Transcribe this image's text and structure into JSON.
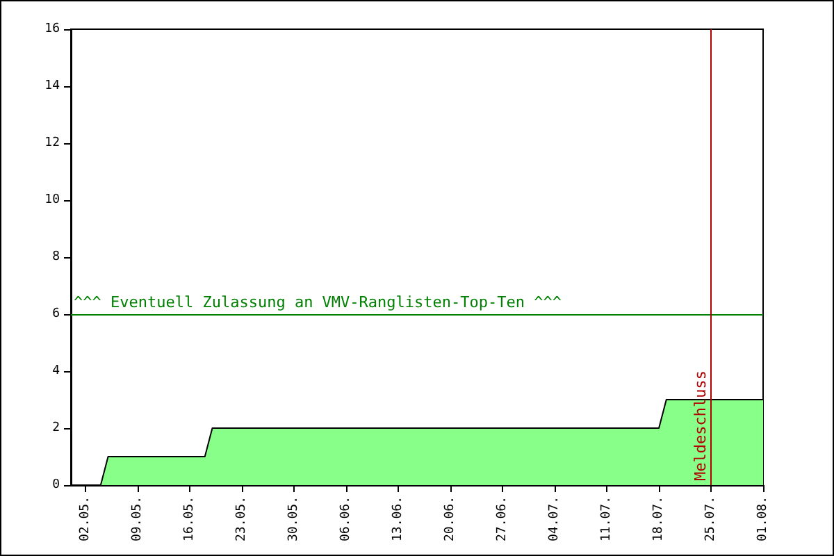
{
  "chart_data": {
    "type": "area",
    "x": [
      "--05-04",
      "--05-05",
      "--05-18",
      "--05-19",
      "--07-18",
      "--07-19",
      "--08-01"
    ],
    "series": [
      {
        "color": "#88ff88",
        "values": [
          0,
          1,
          1,
          2,
          2,
          3,
          3
        ]
      }
    ],
    "xlim": [
      "--04-30",
      "--08-01"
    ],
    "xticks": [
      {
        "value": "--05-02",
        "label": "02.05."
      },
      {
        "value": "--05-09",
        "label": "09.05."
      },
      {
        "value": "--05-16",
        "label": "16.05."
      },
      {
        "value": "--05-23",
        "label": "23.05."
      },
      {
        "value": "--05-30",
        "label": "30.05."
      },
      {
        "value": "--06-06",
        "label": "06.06."
      },
      {
        "value": "--06-13",
        "label": "13.06."
      },
      {
        "value": "--06-20",
        "label": "20.06."
      },
      {
        "value": "--06-27",
        "label": "27.06."
      },
      {
        "value": "--07-04",
        "label": "04.07."
      },
      {
        "value": "--07-11",
        "label": "11.07."
      },
      {
        "value": "--07-18",
        "label": "18.07."
      },
      {
        "value": "--07-25",
        "label": "25.07."
      },
      {
        "value": "--08-01",
        "label": "01.08."
      }
    ],
    "ylim": [
      0,
      16
    ],
    "yticks": [
      0,
      2,
      4,
      6,
      8,
      10,
      12,
      14,
      16
    ],
    "ref_lines": [
      {
        "axis": "y",
        "value": 6,
        "label": "^^^ Eventuell Zulassung an VMV-Ranglisten-Top-Ten ^^^",
        "color": "#008000"
      },
      {
        "axis": "x",
        "value": "--07-25",
        "label": "Meldeschluss",
        "color": "#b00000"
      }
    ],
    "grid": false,
    "marker": "none",
    "line_style": "solid"
  }
}
